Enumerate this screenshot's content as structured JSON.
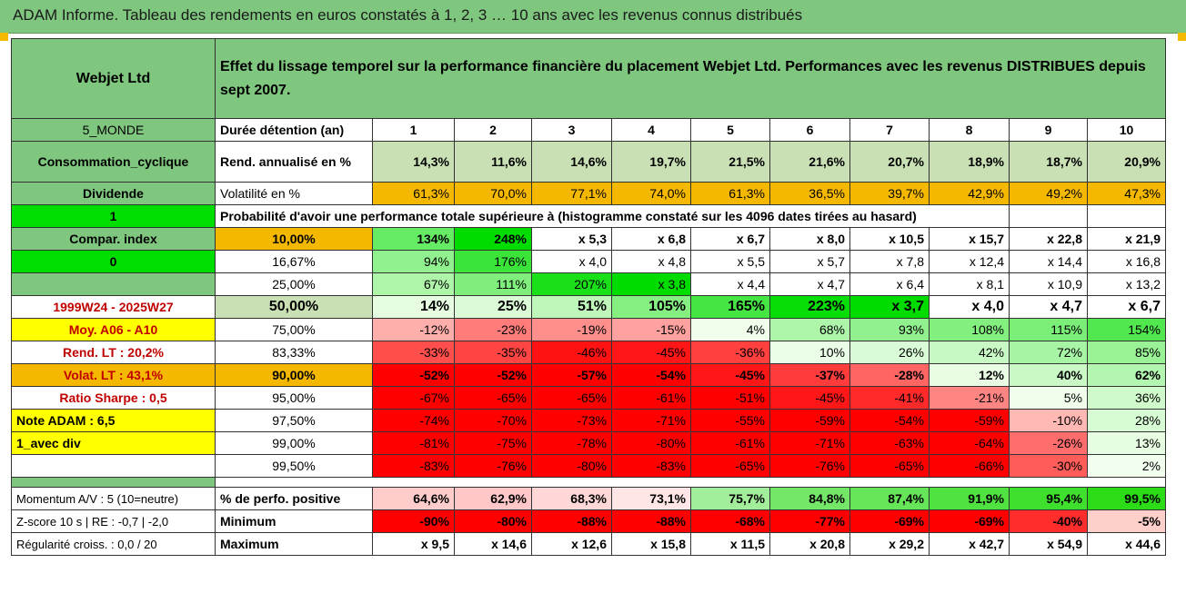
{
  "title": "ADAM Informe. Tableau des rendements en euros constatés à 1, 2, 3 … 10 ans avec les revenus connus distribués",
  "company": "Webjet Ltd",
  "description": "Effet du lissage temporel sur la performance financière du placement Webjet Ltd. Performances avec les revenus DISTRIBUES depuis sept 2007.",
  "left_labels": {
    "zone": "5_MONDE",
    "sector": "Consommation_cyclique",
    "dividend": "Dividende",
    "one": "1",
    "compar_index": "Compar. index",
    "zero": "0",
    "period": "1999W24 - 2025W27",
    "moy": "Moy. A06 - A10",
    "rend_lt": "Rend. LT :    20,2%",
    "volat_lt": "Volat. LT :    43,1%",
    "sharpe": "Ratio Sharpe :    0,5",
    "note": "Note ADAM : 6,5",
    "avec_div": "1_avec div"
  },
  "row_labels": {
    "duree": "Durée détention (an)",
    "rend": "Rend. annualisé en %",
    "volat": "Volatilité en %",
    "proba": "Probabilité d'avoir une performance totale supérieure à (histogramme constaté sur les 4096 dates tirées au hasard)"
  },
  "years": [
    "1",
    "2",
    "3",
    "4",
    "5",
    "6",
    "7",
    "8",
    "9",
    "10"
  ],
  "rend": [
    "14,3%",
    "11,6%",
    "14,6%",
    "19,7%",
    "21,5%",
    "21,6%",
    "20,7%",
    "18,9%",
    "18,7%",
    "20,9%"
  ],
  "volat": [
    "61,3%",
    "70,0%",
    "77,1%",
    "74,0%",
    "61,3%",
    "36,5%",
    "39,7%",
    "42,9%",
    "49,2%",
    "47,3%"
  ],
  "prob_rows": [
    {
      "p": "10,00%",
      "vals": [
        "134%",
        "248%",
        "x 5,3",
        "x 6,8",
        "x 6,7",
        "x 8,0",
        "x 10,5",
        "x 15,7",
        "x 22,8",
        "x 21,9"
      ]
    },
    {
      "p": "16,67%",
      "vals": [
        "94%",
        "176%",
        "x 4,0",
        "x 4,8",
        "x 5,5",
        "x 5,7",
        "x 7,8",
        "x 12,4",
        "x 14,4",
        "x 16,8"
      ]
    },
    {
      "p": "25,00%",
      "vals": [
        "67%",
        "111%",
        "207%",
        "x 3,8",
        "x 4,4",
        "x 4,7",
        "x 6,4",
        "x 8,1",
        "x 10,9",
        "x 13,2"
      ]
    },
    {
      "p": "50,00%",
      "vals": [
        "14%",
        "25%",
        "51%",
        "105%",
        "165%",
        "223%",
        "x 3,7",
        "x 4,0",
        "x 4,7",
        "x 6,7"
      ]
    },
    {
      "p": "75,00%",
      "vals": [
        "-12%",
        "-23%",
        "-19%",
        "-15%",
        "4%",
        "68%",
        "93%",
        "108%",
        "115%",
        "154%"
      ]
    },
    {
      "p": "83,33%",
      "vals": [
        "-33%",
        "-35%",
        "-46%",
        "-45%",
        "-36%",
        "10%",
        "26%",
        "42%",
        "72%",
        "85%"
      ]
    },
    {
      "p": "90,00%",
      "vals": [
        "-52%",
        "-52%",
        "-57%",
        "-54%",
        "-45%",
        "-37%",
        "-28%",
        "12%",
        "40%",
        "62%"
      ]
    },
    {
      "p": "95,00%",
      "vals": [
        "-67%",
        "-65%",
        "-65%",
        "-61%",
        "-51%",
        "-45%",
        "-41%",
        "-21%",
        "5%",
        "36%"
      ]
    },
    {
      "p": "97,50%",
      "vals": [
        "-74%",
        "-70%",
        "-73%",
        "-71%",
        "-55%",
        "-59%",
        "-54%",
        "-59%",
        "-10%",
        "28%"
      ]
    },
    {
      "p": "99,00%",
      "vals": [
        "-81%",
        "-75%",
        "-78%",
        "-80%",
        "-61%",
        "-71%",
        "-63%",
        "-64%",
        "-26%",
        "13%"
      ]
    },
    {
      "p": "99,50%",
      "vals": [
        "-83%",
        "-76%",
        "-80%",
        "-83%",
        "-65%",
        "-76%",
        "-65%",
        "-66%",
        "-30%",
        "2%"
      ]
    }
  ],
  "bottom": [
    {
      "left": "Momentum A/V : 5 (10=neutre)",
      "label": "% de perfo. positive",
      "vals": [
        "64,6%",
        "62,9%",
        "68,3%",
        "73,1%",
        "75,7%",
        "84,8%",
        "87,4%",
        "91,9%",
        "95,4%",
        "99,5%"
      ]
    },
    {
      "left": "Z-score 10 s | RE : -0,7 | -2,0",
      "label": "Minimum",
      "vals": [
        "-90%",
        "-80%",
        "-88%",
        "-88%",
        "-68%",
        "-77%",
        "-69%",
        "-69%",
        "-40%",
        "-5%"
      ]
    },
    {
      "left": "Régularité croiss. : 0,0 / 20",
      "label": "Maximum",
      "vals": [
        "x 9,5",
        "x 14,6",
        "x 12,6",
        "x 15,8",
        "x 11,5",
        "x 20,8",
        "x 29,2",
        "x 42,7",
        "x 54,9",
        "x 44,6"
      ]
    }
  ],
  "colors": {
    "header_green": "#7fc77f",
    "pale_green": "#c8e0b4",
    "orange": "#f5b800",
    "yellow": "#ffff00",
    "bright_green": "#00dd00",
    "red_text": "#c00000"
  }
}
